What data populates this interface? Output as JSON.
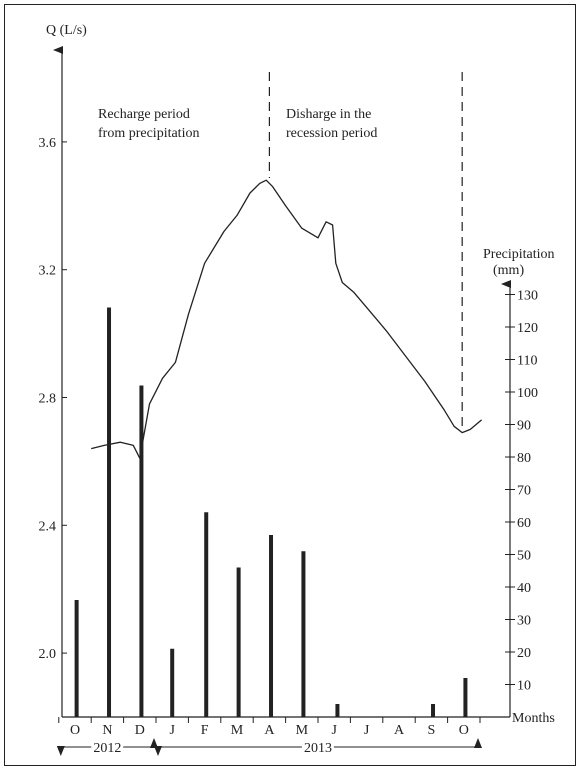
{
  "chart_data": {
    "type": "bar+line",
    "left_axis": {
      "label": "Q (L/s)",
      "ticks": [
        "2.0",
        "2.4",
        "2.8",
        "3.2",
        "3.6"
      ],
      "tick_values": [
        2.0,
        2.4,
        2.8,
        3.2,
        3.6
      ],
      "range": [
        1.8,
        3.8
      ]
    },
    "right_axis": {
      "label_line1": "Precipitation",
      "label_line2": "(mm)",
      "ticks": [
        "10",
        "20",
        "30",
        "40",
        "50",
        "60",
        "70",
        "80",
        "90",
        "100",
        "110",
        "120",
        "130"
      ],
      "tick_values": [
        10,
        20,
        30,
        40,
        50,
        60,
        70,
        80,
        90,
        100,
        110,
        120,
        130
      ],
      "range": [
        0,
        140
      ]
    },
    "x_axis": {
      "label": "Months",
      "categories": [
        "O",
        "N",
        "D",
        "J",
        "F",
        "M",
        "A",
        "M",
        "J",
        "J",
        "A",
        "S",
        "O"
      ],
      "years": [
        {
          "label": "2012",
          "from": 0,
          "to": 2
        },
        {
          "label": "2013",
          "from": 3,
          "to": 12
        }
      ]
    },
    "annotations": {
      "recharge_line1": "Recharge period",
      "recharge_line2": "from precipitation",
      "discharge_line1": "Disharge in the",
      "discharge_line2": "recession period"
    },
    "dashed_markers_at": [
      6.0,
      11.95
    ],
    "precipitation": {
      "bar_x": [
        0.05,
        1.05,
        2.05,
        3.0,
        4.05,
        5.05,
        6.05,
        7.05,
        8.1,
        11.05,
        12.05
      ],
      "values": [
        36,
        126,
        102,
        21,
        63,
        46,
        56,
        51,
        4,
        4,
        12
      ]
    },
    "discharge": {
      "x": [
        0.5,
        0.9,
        1.4,
        1.8,
        2.0,
        2.3,
        2.7,
        3.1,
        3.5,
        4.0,
        4.6,
        5.0,
        5.4,
        5.7,
        5.9,
        6.1,
        6.5,
        7.0,
        7.5,
        7.75,
        7.95,
        8.05,
        8.25,
        8.6,
        9.1,
        9.6,
        10.2,
        10.8,
        11.4,
        11.7,
        11.95,
        12.2,
        12.55
      ],
      "y": [
        2.64,
        2.65,
        2.66,
        2.65,
        2.61,
        2.78,
        2.86,
        2.91,
        3.06,
        3.22,
        3.32,
        3.37,
        3.44,
        3.47,
        3.48,
        3.46,
        3.4,
        3.33,
        3.3,
        3.35,
        3.34,
        3.22,
        3.16,
        3.13,
        3.07,
        3.01,
        2.93,
        2.85,
        2.76,
        2.71,
        2.69,
        2.7,
        2.73
      ]
    }
  }
}
